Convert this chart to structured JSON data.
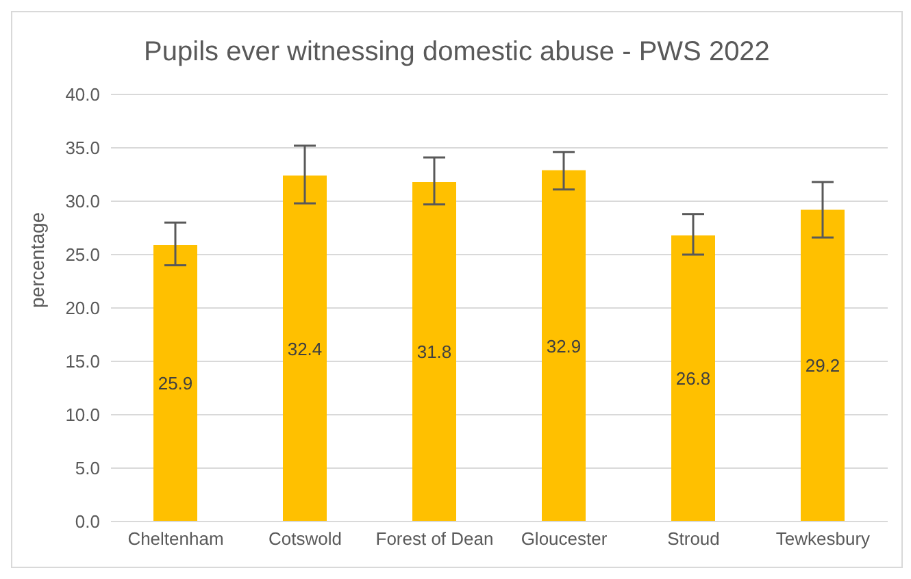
{
  "chart_data": {
    "type": "bar",
    "title": "Pupils ever witnessing domestic abuse - PWS 2022",
    "ylabel": "percentage",
    "categories": [
      "Cheltenham",
      "Cotswold",
      "Forest of Dean",
      "Gloucester",
      "Stroud",
      "Tewkesbury"
    ],
    "values": [
      25.9,
      32.4,
      31.8,
      32.9,
      26.8,
      29.2
    ],
    "color": "#ffc000",
    "errors": [
      [
        24.0,
        28.0
      ],
      [
        29.8,
        35.2
      ],
      [
        29.7,
        34.1
      ],
      [
        31.1,
        34.6
      ],
      [
        25.0,
        28.8
      ],
      [
        26.6,
        31.8
      ]
    ],
    "ylim": [
      0,
      40
    ],
    "yticks": [
      {
        "value": 0,
        "label": "0.0"
      },
      {
        "value": 5,
        "label": "5.0"
      },
      {
        "value": 10,
        "label": "10.0"
      },
      {
        "value": 15,
        "label": "15.0"
      },
      {
        "value": 20,
        "label": "20.0"
      },
      {
        "value": 25,
        "label": "25.0"
      },
      {
        "value": 30,
        "label": "30.0"
      },
      {
        "value": 35,
        "label": "35.0"
      },
      {
        "value": 40,
        "label": "40.0"
      }
    ],
    "grid": "y",
    "data_labels": true
  }
}
